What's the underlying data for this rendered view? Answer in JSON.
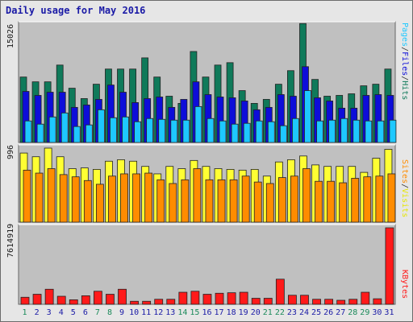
{
  "window": {
    "title": "Daily usage for May 2016"
  },
  "colors": {
    "pages": "#1ec8ff",
    "files": "#0d0dd9",
    "hits": "#0f7a5a",
    "visits": "#ffff33",
    "sites": "#ff8c00",
    "kbytes": "#ff1a1a",
    "weekend": "#1a8a5a",
    "weekday": "#1a1aa6",
    "panel": "#c0c0c0",
    "frame": "#e6e6e6"
  },
  "chart_data": [
    {
      "type": "bar",
      "panel": "top",
      "y_max_label": "15026",
      "right_labels": {
        "pages": "Pages",
        "files": "Files",
        "hits": "Hits"
      },
      "categories": [
        "1",
        "2",
        "3",
        "4",
        "5",
        "6",
        "7",
        "8",
        "9",
        "10",
        "11",
        "12",
        "13",
        "14",
        "15",
        "16",
        "17",
        "18",
        "19",
        "20",
        "21",
        "22",
        "23",
        "24",
        "25",
        "26",
        "27",
        "28",
        "29",
        "30",
        "31"
      ],
      "weekend_days": [
        1,
        7,
        8,
        14,
        15,
        21,
        22,
        28,
        29
      ],
      "ylim": [
        0,
        15026
      ],
      "series": [
        {
          "name": "Hits",
          "values": [
            8200,
            7600,
            7600,
            9700,
            6800,
            5500,
            7300,
            9200,
            9200,
            9200,
            10600,
            8200,
            5800,
            4900,
            11400,
            8200,
            9700,
            10000,
            6500,
            4900,
            5400,
            7300,
            9000,
            14900,
            7900,
            5800,
            5900,
            6100,
            7100,
            7300,
            9200
          ]
        },
        {
          "name": "Files",
          "values": [
            6400,
            5900,
            6300,
            6300,
            4400,
            4700,
            5400,
            7200,
            6300,
            5000,
            5500,
            5700,
            4400,
            5400,
            7600,
            6000,
            5700,
            5600,
            5200,
            4100,
            4400,
            6000,
            5800,
            9500,
            5600,
            5200,
            4300,
            4300,
            5900,
            6000,
            5900
          ]
        },
        {
          "name": "Pages",
          "values": [
            2700,
            2300,
            3200,
            3700,
            2000,
            2200,
            4100,
            3100,
            3200,
            2600,
            3000,
            2900,
            2800,
            2800,
            4500,
            3000,
            2700,
            2300,
            2400,
            2700,
            2600,
            2100,
            3000,
            6500,
            2700,
            2800,
            3000,
            2800,
            2700,
            2700,
            2800
          ]
        }
      ]
    },
    {
      "type": "bar",
      "panel": "middle",
      "y_max_label": "996",
      "right_labels": {
        "sites": "Sites",
        "visits": "Visits"
      },
      "categories": [
        "1",
        "2",
        "3",
        "4",
        "5",
        "6",
        "7",
        "8",
        "9",
        "10",
        "11",
        "12",
        "13",
        "14",
        "15",
        "16",
        "17",
        "18",
        "19",
        "20",
        "21",
        "22",
        "23",
        "24",
        "25",
        "26",
        "27",
        "28",
        "29",
        "30",
        "31"
      ],
      "ylim": [
        0,
        996
      ],
      "series": [
        {
          "name": "Visits",
          "values": [
            930,
            880,
            996,
            880,
            720,
            730,
            710,
            820,
            840,
            820,
            750,
            650,
            750,
            720,
            830,
            750,
            720,
            710,
            700,
            710,
            620,
            810,
            840,
            890,
            770,
            750,
            750,
            750,
            670,
            860,
            980
          ]
        },
        {
          "name": "Sites",
          "values": [
            700,
            660,
            720,
            640,
            610,
            560,
            510,
            620,
            650,
            650,
            660,
            570,
            520,
            570,
            720,
            570,
            570,
            570,
            620,
            540,
            520,
            600,
            620,
            720,
            550,
            550,
            530,
            590,
            610,
            620,
            650
          ]
        }
      ]
    },
    {
      "type": "bar",
      "panel": "bottom",
      "y_max_label": "7614919",
      "right_labels": {
        "kbytes": "KBytes"
      },
      "categories": [
        "1",
        "2",
        "3",
        "4",
        "5",
        "6",
        "7",
        "8",
        "9",
        "10",
        "11",
        "12",
        "13",
        "14",
        "15",
        "16",
        "17",
        "18",
        "19",
        "20",
        "21",
        "22",
        "23",
        "24",
        "25",
        "26",
        "27",
        "28",
        "29",
        "30",
        "31"
      ],
      "ylim": [
        0,
        7614919
      ],
      "series": [
        {
          "name": "KBytes",
          "values": [
            700000,
            1000000,
            1500000,
            800000,
            450000,
            850000,
            1300000,
            1000000,
            1500000,
            300000,
            300000,
            500000,
            500000,
            1200000,
            1300000,
            1000000,
            1100000,
            1150000,
            1200000,
            600000,
            600000,
            2500000,
            900000,
            900000,
            500000,
            500000,
            400000,
            500000,
            1200000,
            550000,
            7614919
          ]
        }
      ]
    }
  ]
}
